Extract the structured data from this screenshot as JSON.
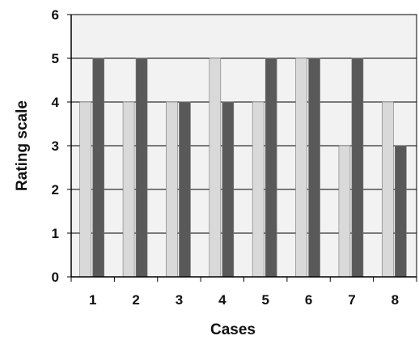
{
  "chart_data": {
    "type": "bar",
    "title": "",
    "xlabel": "Cases",
    "ylabel": "Rating scale",
    "categories": [
      "1",
      "2",
      "3",
      "4",
      "5",
      "6",
      "7",
      "8"
    ],
    "series": [
      {
        "values": [
          4,
          4,
          4,
          5,
          4,
          5,
          3,
          4
        ],
        "color": "#d9d9d9"
      },
      {
        "values": [
          5,
          5,
          4,
          4,
          5,
          5,
          5,
          3
        ],
        "color": "#595959"
      }
    ],
    "ylim": [
      0,
      6
    ],
    "yticks": [
      "0",
      "1",
      "2",
      "3",
      "4",
      "5",
      "6"
    ],
    "grid": true,
    "plot_background": "#f2f2f2"
  }
}
